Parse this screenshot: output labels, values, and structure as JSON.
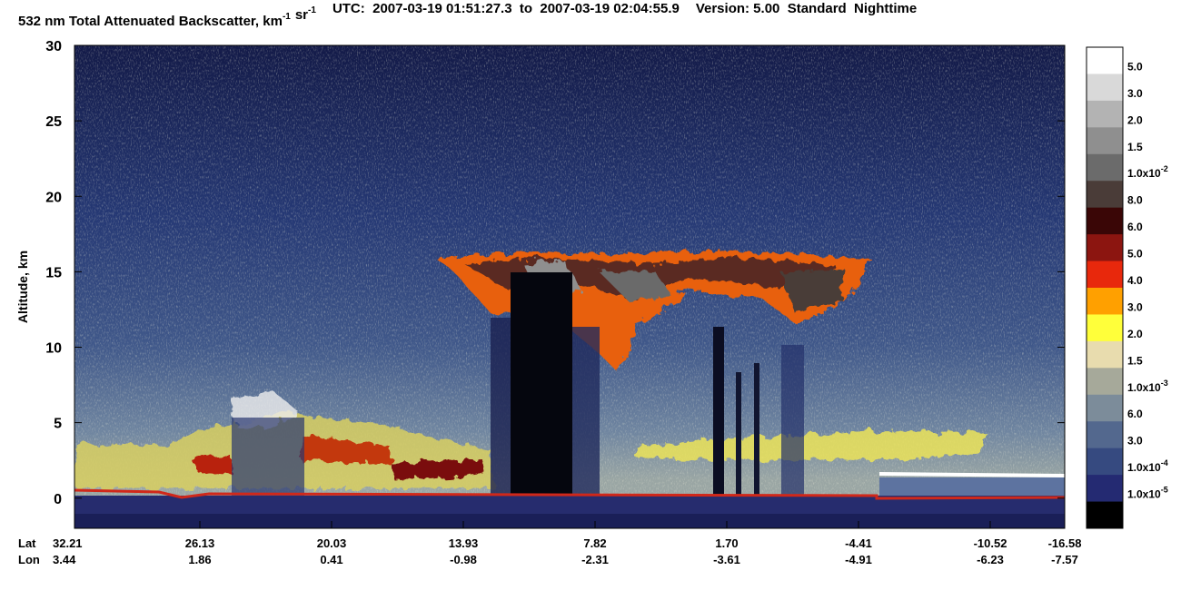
{
  "chart_data": {
    "type": "curtain",
    "title_parts": [
      {
        "text": "532 nm Total Attenuated Backscatter, km",
        "sup": "-1"
      },
      {
        "text": "sr",
        "sup": "-1"
      }
    ],
    "utc": "UTC:  2007-03-19 01:51:27.3  to  2007-03-19 02:04:55.9",
    "version": "Version: 5.00  Standard  Nighttime",
    "ylabel": "Altitude, km",
    "ylim": [
      -2,
      30
    ],
    "yticks": [
      0,
      5,
      10,
      15,
      20,
      25,
      30
    ],
    "x_rows": [
      {
        "name": "Lat",
        "values": [
          "32.21",
          "26.13",
          "20.03",
          "13.93",
          "7.82",
          "1.70",
          "-4.41",
          "-10.52",
          "-16.58"
        ]
      },
      {
        "name": "Lon",
        "values": [
          "3.44",
          "1.86",
          "0.41",
          "-0.98",
          "-2.31",
          "-3.61",
          "-4.91",
          "-6.23",
          "-7.57"
        ]
      }
    ],
    "colorbar": {
      "colors": [
        "#ffffff",
        "#d9d9d9",
        "#b3b3b3",
        "#8f8f8f",
        "#6b6b6b",
        "#4a3c38",
        "#3a0606",
        "#8c1510",
        "#e8280c",
        "#ffa000",
        "#ffff3a",
        "#e8dcae",
        "#a6a99a",
        "#7c8c9a",
        "#53688e",
        "#364a80",
        "#242a72",
        "#000000"
      ],
      "labels": [
        {
          "text": "5.0"
        },
        {
          "text": "3.0"
        },
        {
          "text": "2.0"
        },
        {
          "text": "1.5"
        },
        {
          "text": "1.0x10",
          "sup": "-2"
        },
        {
          "text": "8.0"
        },
        {
          "text": "6.0"
        },
        {
          "text": "5.0"
        },
        {
          "text": "4.0"
        },
        {
          "text": "3.0"
        },
        {
          "text": "2.0"
        },
        {
          "text": "1.5"
        },
        {
          "text": "1.0x10",
          "sup": "-3"
        },
        {
          "text": "6.0"
        },
        {
          "text": "3.0"
        },
        {
          "text": "1.0x10",
          "sup": "-4"
        },
        {
          "text": "1.0x10",
          "sup": "-5"
        }
      ]
    }
  }
}
